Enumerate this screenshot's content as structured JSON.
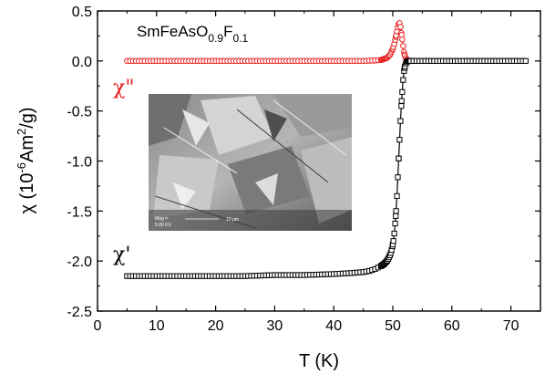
{
  "chart_data": {
    "type": "scatter",
    "xlabel": "T (K)",
    "ylabel_parts": {
      "pre": "χ (10",
      "exp1": "-6",
      "mid": "Am",
      "exp2": "2",
      "post": "/g)"
    },
    "xlim": [
      0,
      75
    ],
    "ylim": [
      -2.5,
      0.5
    ],
    "x_ticks": [
      0,
      10,
      20,
      30,
      40,
      50,
      60,
      70
    ],
    "y_ticks": [
      0.5,
      0.0,
      -0.5,
      -1.0,
      -1.5,
      -2.0,
      -2.5
    ],
    "x_tick_labels": [
      "0",
      "10",
      "20",
      "30",
      "40",
      "50",
      "60",
      "70"
    ],
    "y_tick_labels": [
      "0.5",
      "0.0",
      "-0.5",
      "-1.0",
      "-1.5",
      "-2.0",
      "-2.5"
    ],
    "grid": false,
    "compound_label": {
      "base1": "SmFeAsO",
      "sub1": "0.9",
      "base2": "F",
      "sub2": "0.1"
    },
    "inset": {
      "scale_text": "10 μm",
      "meta_line1": "Mag =",
      "meta_line2": "5.00 KX"
    },
    "series": [
      {
        "name": "χ\"",
        "color": "#e8201f",
        "marker": "circle",
        "values": [
          [
            5,
            0.0
          ],
          [
            10,
            0.0
          ],
          [
            20,
            0.0
          ],
          [
            30,
            0.0
          ],
          [
            40,
            0.0
          ],
          [
            45,
            0.0
          ],
          [
            47,
            0.005
          ],
          [
            48,
            0.01
          ],
          [
            49,
            0.03
          ],
          [
            49.5,
            0.06
          ],
          [
            50,
            0.12
          ],
          [
            50.3,
            0.18
          ],
          [
            50.6,
            0.27
          ],
          [
            50.9,
            0.35
          ],
          [
            51.1,
            0.39
          ],
          [
            51.3,
            0.34
          ],
          [
            51.5,
            0.26
          ],
          [
            51.7,
            0.17
          ],
          [
            51.9,
            0.09
          ],
          [
            52.1,
            0.04
          ],
          [
            52.4,
            0.01
          ],
          [
            53,
            0.0
          ],
          [
            60,
            0.0
          ],
          [
            70,
            0.0
          ],
          [
            72.5,
            0.0
          ]
        ]
      },
      {
        "name": "χ'",
        "color": "#000000",
        "marker": "square",
        "values": [
          [
            5,
            -2.15
          ],
          [
            10,
            -2.15
          ],
          [
            15,
            -2.15
          ],
          [
            20,
            -2.15
          ],
          [
            25,
            -2.15
          ],
          [
            30,
            -2.14
          ],
          [
            35,
            -2.14
          ],
          [
            40,
            -2.13
          ],
          [
            43,
            -2.12
          ],
          [
            45,
            -2.11
          ],
          [
            46,
            -2.1
          ],
          [
            47,
            -2.08
          ],
          [
            48,
            -2.05
          ],
          [
            48.5,
            -2.03
          ],
          [
            49,
            -2.0
          ],
          [
            49.3,
            -1.97
          ],
          [
            49.6,
            -1.93
          ],
          [
            49.9,
            -1.87
          ],
          [
            50.1,
            -1.8
          ],
          [
            50.3,
            -1.7
          ],
          [
            50.5,
            -1.55
          ],
          [
            50.7,
            -1.35
          ],
          [
            50.9,
            -1.1
          ],
          [
            51.1,
            -0.85
          ],
          [
            51.3,
            -0.6
          ],
          [
            51.5,
            -0.4
          ],
          [
            51.7,
            -0.22
          ],
          [
            51.9,
            -0.1
          ],
          [
            52.1,
            -0.04
          ],
          [
            52.3,
            -0.01
          ],
          [
            52.6,
            0.0
          ],
          [
            53,
            0.0
          ],
          [
            60,
            0.0
          ],
          [
            70,
            0.0
          ],
          [
            72.5,
            0.0
          ]
        ]
      }
    ]
  }
}
